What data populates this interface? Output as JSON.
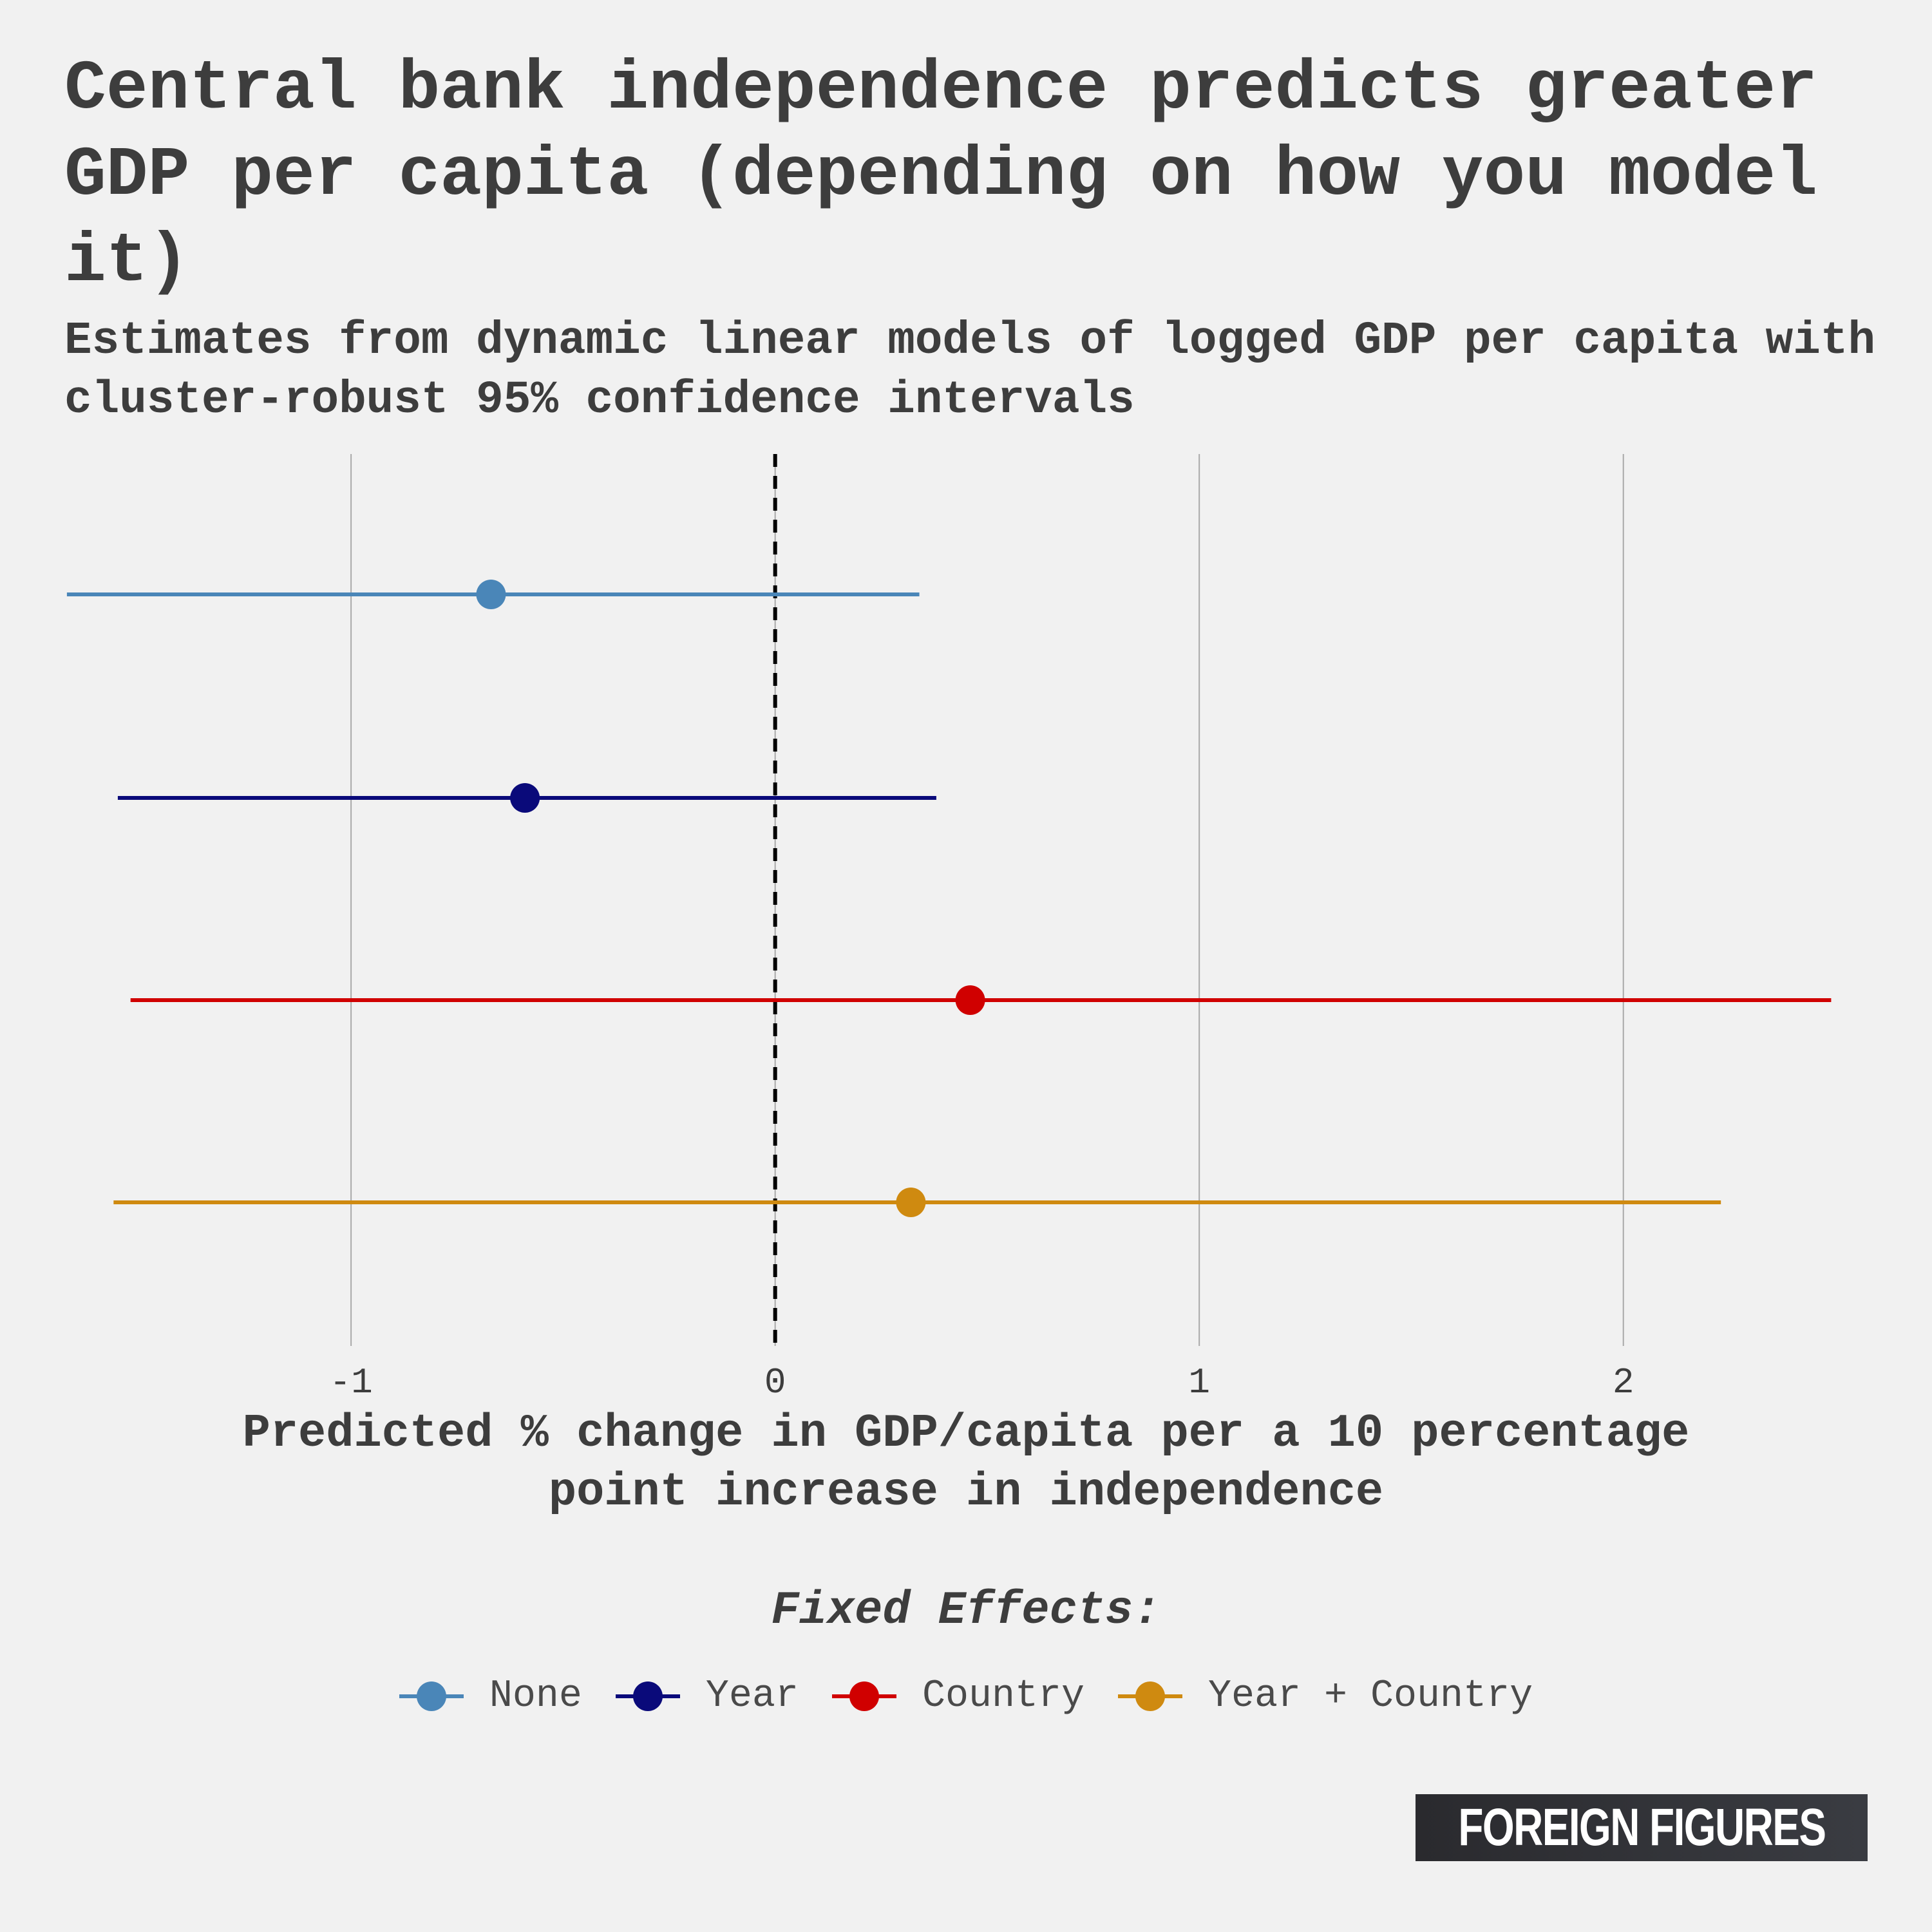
{
  "title": "Central bank independence predicts greater GDP per capita (depending on how you model it)",
  "subtitle": "Estimates from dynamic linear models of logged GDP per capita with cluster-robust 95% confidence intervals",
  "chart_data": {
    "type": "scatter",
    "subtype": "coefficient plot with confidence intervals",
    "title": "Central bank independence predicts greater GDP per capita (depending on how you model it)",
    "subtitle": "Estimates from dynamic linear models of logged GDP per capita with cluster-robust 95% confidence intervals",
    "xlabel": "Predicted % change in GDP/capita per a 10 percentage point increase in independence",
    "ylabel": "",
    "xlim": [
      -1.6,
      2.5
    ],
    "xticks": [
      -1,
      0,
      1,
      2
    ],
    "reference_line": {
      "x": 0,
      "style": "dashed"
    },
    "grid": "vertical major gridlines",
    "legend": {
      "title": "Fixed Effects:",
      "position": "bottom"
    },
    "series": [
      {
        "name": "None",
        "estimate": -0.67,
        "lower": -1.67,
        "upper": 0.34,
        "color": "#4a86b8"
      },
      {
        "name": "Year",
        "estimate": -0.59,
        "lower": -1.55,
        "upper": 0.38,
        "color": "#0a0a7a"
      },
      {
        "name": "Country",
        "estimate": 0.46,
        "lower": -1.52,
        "upper": 2.49,
        "color": "#d00000"
      },
      {
        "name": "Year + Country",
        "estimate": 0.32,
        "lower": -1.56,
        "upper": 2.23,
        "color": "#cf8a10"
      }
    ]
  },
  "legend_title": "Fixed Effects:",
  "logo_text": "FOREIGN FIGURES"
}
